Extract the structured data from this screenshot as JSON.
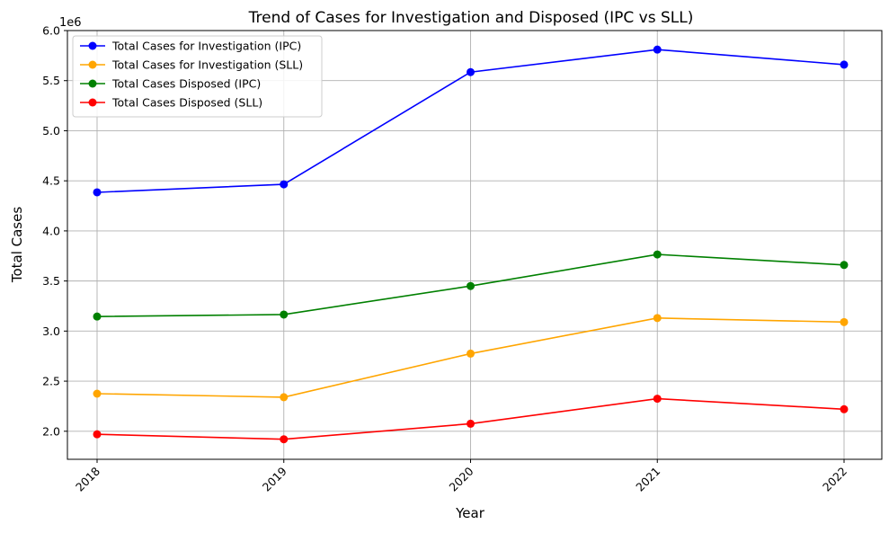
{
  "chart_data": {
    "type": "line",
    "title": "Trend of Cases for Investigation and Disposed (IPC vs SLL)",
    "xlabel": "Year",
    "ylabel": "Total Cases",
    "offset_text": "1e6",
    "x": [
      "2018",
      "2019",
      "2020",
      "2021",
      "2022"
    ],
    "ylim": [
      1.72,
      6.0
    ],
    "yticks": [
      2.0,
      2.5,
      3.0,
      3.5,
      4.0,
      4.5,
      5.0,
      5.5,
      6.0
    ],
    "ytick_labels": [
      "2.0",
      "2.5",
      "3.0",
      "3.5",
      "4.0",
      "4.5",
      "5.0",
      "5.5",
      "6.0"
    ],
    "y_unit_multiplier": 1000000,
    "grid": true,
    "legend_position": "upper left",
    "series": [
      {
        "name": "Total Cases for Investigation (IPC)",
        "color": "#0000ff",
        "values": [
          4385000,
          4465000,
          5585000,
          5810000,
          5660000
        ]
      },
      {
        "name": "Total Cases for Investigation (SLL)",
        "color": "#ffa500",
        "values": [
          2375000,
          2340000,
          2775000,
          3130000,
          3090000
        ]
      },
      {
        "name": "Total Cases Disposed (IPC)",
        "color": "#008000",
        "values": [
          3145000,
          3165000,
          3450000,
          3765000,
          3660000
        ]
      },
      {
        "name": "Total Cases Disposed (SLL)",
        "color": "#ff0000",
        "values": [
          1970000,
          1920000,
          2075000,
          2325000,
          2220000
        ]
      }
    ]
  }
}
